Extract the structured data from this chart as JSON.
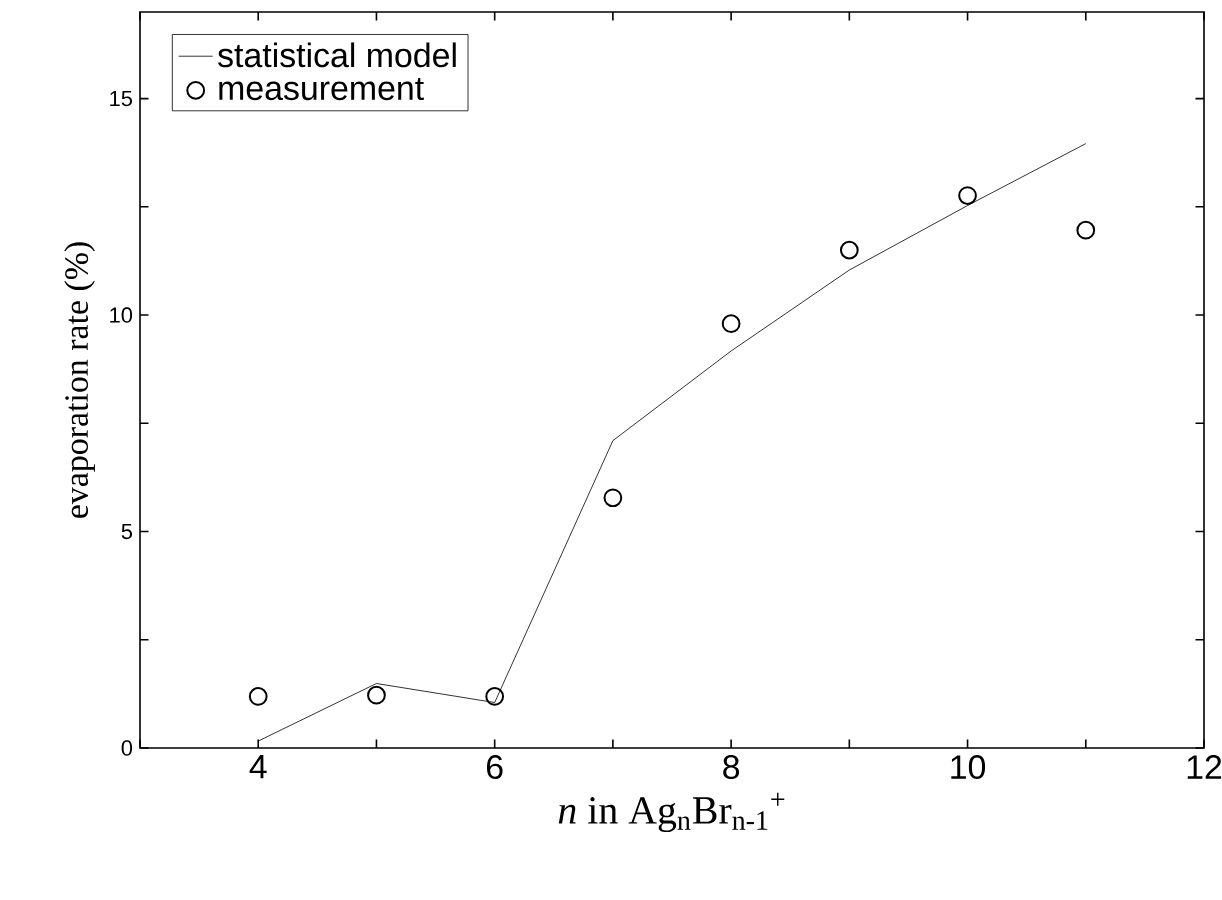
{
  "chart_data": {
    "type": "line",
    "xlabel": "*n* in Ag$_{n}$Br$_{n-1}$$^{+}$",
    "ylabel": "evaporation rate (%)",
    "x": [
      4,
      5,
      6,
      7,
      8,
      9,
      10,
      11
    ],
    "series": [
      {
        "name": "statistical model",
        "color": "#000000",
        "marker": "none",
        "line_style": "solid",
        "values": [
          0.16,
          1.49,
          1.05,
          7.1,
          9.17,
          11.04,
          12.53,
          13.96
        ]
      },
      {
        "name": "measurement",
        "type": "scatter",
        "color": "#000000",
        "marker": "circle",
        "values": [
          1.19,
          1.22,
          1.19,
          5.78,
          9.8,
          11.5,
          12.76,
          11.96
        ]
      }
    ],
    "xlim": [
      3,
      12
    ],
    "ylim": [
      0,
      17
    ],
    "xticks": [
      {
        "value": 3,
        "label": null
      },
      4,
      {
        "value": 5,
        "label": null
      },
      6,
      {
        "value": 7,
        "label": null
      },
      8,
      {
        "value": 9,
        "label": null
      },
      10,
      {
        "value": 11,
        "label": null
      },
      12
    ],
    "yticks": [
      0,
      {
        "value": 2.5,
        "label": null
      },
      5,
      {
        "value": 7.5,
        "label": null
      },
      10,
      {
        "value": 12.5,
        "label": null
      },
      15
    ],
    "grid": false,
    "legend": "top left"
  }
}
